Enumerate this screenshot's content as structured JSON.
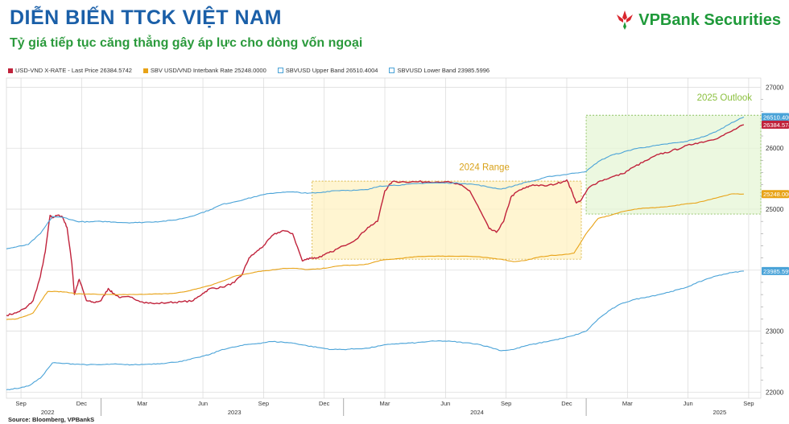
{
  "header": {
    "title": "DIỄN BIẾN TTCK VIỆT NAM",
    "subtitle": "Tỷ giá tiếp tục căng thẳng gây áp lực cho dòng vốn ngoại",
    "logo_text": "VPBank Securities"
  },
  "source": "Source: Bloomberg, VPBankS",
  "colors": {
    "usd_vnd": "#c0223b",
    "interbank": "#e8a317",
    "upper": "#4aa3d8",
    "lower": "#4aa3d8",
    "brand_blue": "#1a5fa8",
    "brand_green": "#2b9a3c"
  },
  "chart_data": {
    "type": "line",
    "legend": [
      {
        "label": "USD-VND X-RATE - Last Price 26384.5742",
        "color": "#c0223b"
      },
      {
        "label": "SBV USD/VND Interbank Rate 25248.0000",
        "color": "#e8a317"
      },
      {
        "label": "SBVUSD Upper Band 26510.4004",
        "color": "#4aa3d8"
      },
      {
        "label": "SBVUSD Lower Band 23985.5996",
        "color": "#4aa3d8"
      }
    ],
    "ylim": [
      21900,
      27150
    ],
    "y_ticks": [
      "22000",
      "23000",
      "24000",
      "25000",
      "26000",
      "27000"
    ],
    "x_range": [
      2022.61,
      2025.72
    ],
    "x_tick_labels": [
      {
        "x": 2022.67,
        "label": "Sep"
      },
      {
        "x": 2022.92,
        "label": "Dec"
      },
      {
        "x": 2023.17,
        "label": "Mar"
      },
      {
        "x": 2023.42,
        "label": "Jun"
      },
      {
        "x": 2023.67,
        "label": "Sep"
      },
      {
        "x": 2023.92,
        "label": "Dec"
      },
      {
        "x": 2024.17,
        "label": "Mar"
      },
      {
        "x": 2024.42,
        "label": "Jun"
      },
      {
        "x": 2024.67,
        "label": "Sep"
      },
      {
        "x": 2024.92,
        "label": "Dec"
      },
      {
        "x": 2025.17,
        "label": "Mar"
      },
      {
        "x": 2025.42,
        "label": "Jun"
      },
      {
        "x": 2025.67,
        "label": "Sep"
      }
    ],
    "year_labels": [
      {
        "x": 2022.78,
        "label": "2022"
      },
      {
        "x": 2023.55,
        "label": "2023"
      },
      {
        "x": 2024.55,
        "label": "2024"
      },
      {
        "x": 2025.55,
        "label": "2025"
      }
    ],
    "year_dividers": [
      2023.0,
      2024.0,
      2025.0
    ],
    "last_value_labels": [
      {
        "label": "26510.4004",
        "value": 26510,
        "color": "#4aa3d8"
      },
      {
        "label": "26384.5742",
        "value": 26385,
        "color": "#c0223b"
      },
      {
        "label": "25248.0000",
        "value": 25248,
        "color": "#e8a317"
      },
      {
        "label": "23985.5996",
        "value": 23986,
        "color": "#4aa3d8"
      }
    ],
    "annotations": [
      {
        "label": "2024 Range",
        "x0": 2023.87,
        "x1": 2024.98,
        "y0": 24180,
        "y1": 25460,
        "fill": "#fff2c2",
        "stroke": "#d9b84a",
        "label_x": 2024.58,
        "label_y": 25640,
        "label_color": "#d9a21a"
      },
      {
        "label": "2025 Outlook",
        "x0": 2025.0,
        "x1": 2025.72,
        "y0": 24920,
        "y1": 26540,
        "fill": "#e6f5d6",
        "stroke": "#8cc060",
        "label_x": 2025.57,
        "label_y": 26780,
        "label_color": "#8cc040"
      }
    ],
    "series": [
      {
        "name": "USD-VND X-RATE",
        "color": "#c0223b",
        "x": [
          2022.61,
          2022.65,
          2022.69,
          2022.72,
          2022.75,
          2022.77,
          2022.79,
          2022.8,
          2022.82,
          2022.84,
          2022.86,
          2022.88,
          2022.89,
          2022.91,
          2022.94,
          2022.97,
          2023.0,
          2023.03,
          2023.05,
          2023.08,
          2023.12,
          2023.17,
          2023.22,
          2023.28,
          2023.33,
          2023.38,
          2023.42,
          2023.45,
          2023.5,
          2023.55,
          2023.58,
          2023.61,
          2023.64,
          2023.67,
          2023.71,
          2023.75,
          2023.79,
          2023.83,
          2023.86,
          2023.89,
          2023.92,
          2023.95,
          2024.0,
          2024.05,
          2024.1,
          2024.14,
          2024.17,
          2024.2,
          2024.25,
          2024.3,
          2024.35,
          2024.42,
          2024.48,
          2024.52,
          2024.56,
          2024.6,
          2024.63,
          2024.66,
          2024.69,
          2024.72,
          2024.75,
          2024.78,
          2024.83,
          2024.88,
          2024.92,
          2024.94,
          2024.96,
          2024.98,
          2025.01,
          2025.05,
          2025.1,
          2025.15,
          2025.2,
          2025.25,
          2025.3,
          2025.35,
          2025.4,
          2025.45,
          2025.5,
          2025.55,
          2025.6,
          2025.65
        ],
        "y": [
          23260,
          23300,
          23380,
          23500,
          23900,
          24300,
          24900,
          24860,
          24900,
          24880,
          24700,
          24100,
          23600,
          23850,
          23500,
          23470,
          23500,
          23700,
          23620,
          23550,
          23560,
          23480,
          23450,
          23470,
          23480,
          23500,
          23620,
          23700,
          23720,
          23800,
          23920,
          24200,
          24300,
          24400,
          24580,
          24650,
          24600,
          24150,
          24200,
          24200,
          24250,
          24300,
          24400,
          24500,
          24700,
          24800,
          25300,
          25450,
          25450,
          25450,
          25450,
          25450,
          25400,
          25300,
          25000,
          24680,
          24620,
          24800,
          25200,
          25300,
          25350,
          25400,
          25380,
          25420,
          25480,
          25300,
          25100,
          25150,
          25350,
          25450,
          25520,
          25580,
          25700,
          25800,
          25900,
          25950,
          26020,
          26080,
          26120,
          26180,
          26280,
          26385
        ]
      },
      {
        "name": "SBV USD/VND Interbank Rate",
        "color": "#e8a317",
        "x": [
          2022.61,
          2022.65,
          2022.69,
          2022.72,
          2022.75,
          2022.78,
          2022.82,
          2022.86,
          2022.9,
          2022.95,
          2023.0,
          2023.05,
          2023.1,
          2023.15,
          2023.2,
          2023.25,
          2023.3,
          2023.35,
          2023.4,
          2023.45,
          2023.5,
          2023.55,
          2023.6,
          2023.65,
          2023.7,
          2023.75,
          2023.8,
          2023.85,
          2023.9,
          2023.95,
          2024.0,
          2024.05,
          2024.1,
          2024.15,
          2024.2,
          2024.25,
          2024.3,
          2024.35,
          2024.4,
          2024.45,
          2024.5,
          2024.55,
          2024.6,
          2024.65,
          2024.7,
          2024.75,
          2024.8,
          2024.85,
          2024.9,
          2024.95,
          2025.0,
          2025.05,
          2025.1,
          2025.15,
          2025.2,
          2025.25,
          2025.3,
          2025.35,
          2025.4,
          2025.45,
          2025.5,
          2025.55,
          2025.6,
          2025.65
        ],
        "y": [
          23190,
          23200,
          23250,
          23300,
          23480,
          23650,
          23650,
          23640,
          23610,
          23610,
          23600,
          23600,
          23600,
          23600,
          23610,
          23610,
          23620,
          23650,
          23700,
          23750,
          23820,
          23900,
          23940,
          23980,
          24000,
          24030,
          24030,
          24010,
          24020,
          24050,
          24080,
          24080,
          24100,
          24160,
          24180,
          24200,
          24220,
          24230,
          24230,
          24230,
          24230,
          24220,
          24200,
          24180,
          24140,
          24160,
          24210,
          24240,
          24250,
          24280,
          24600,
          24850,
          24900,
          24960,
          25000,
          25020,
          25030,
          25050,
          25080,
          25100,
          25150,
          25200,
          25250,
          25248
        ]
      },
      {
        "name": "SBVUSD Upper Band",
        "color": "#4aa3d8",
        "x": [
          2022.61,
          2022.65,
          2022.7,
          2022.75,
          2022.8,
          2022.85,
          2022.9,
          2022.95,
          2023.0,
          2023.05,
          2023.1,
          2023.15,
          2023.2,
          2023.25,
          2023.3,
          2023.35,
          2023.4,
          2023.45,
          2023.5,
          2023.55,
          2023.6,
          2023.65,
          2023.7,
          2023.75,
          2023.8,
          2023.85,
          2023.9,
          2023.95,
          2024.0,
          2024.05,
          2024.1,
          2024.15,
          2024.2,
          2024.25,
          2024.3,
          2024.35,
          2024.4,
          2024.45,
          2024.5,
          2024.55,
          2024.6,
          2024.65,
          2024.7,
          2024.75,
          2024.8,
          2024.85,
          2024.9,
          2024.95,
          2025.0,
          2025.05,
          2025.1,
          2025.15,
          2025.2,
          2025.25,
          2025.3,
          2025.35,
          2025.4,
          2025.45,
          2025.5,
          2025.55,
          2025.6,
          2025.65
        ],
        "y": [
          24350,
          24380,
          24420,
          24600,
          24880,
          24860,
          24800,
          24790,
          24800,
          24790,
          24780,
          24780,
          24790,
          24800,
          24820,
          24860,
          24920,
          24990,
          25080,
          25120,
          25170,
          25220,
          25260,
          25280,
          25280,
          25260,
          25270,
          25300,
          25310,
          25310,
          25320,
          25380,
          25390,
          25400,
          25420,
          25430,
          25430,
          25430,
          25420,
          25400,
          25360,
          25330,
          25380,
          25440,
          25480,
          25540,
          25560,
          25590,
          25620,
          25780,
          25880,
          25930,
          25990,
          26020,
          26050,
          26080,
          26100,
          26150,
          26210,
          26300,
          26420,
          26510
        ]
      },
      {
        "name": "SBVUSD Lower Band",
        "color": "#4aa3d8",
        "x": [
          2022.61,
          2022.65,
          2022.7,
          2022.75,
          2022.8,
          2022.85,
          2022.9,
          2022.95,
          2023.0,
          2023.05,
          2023.1,
          2023.15,
          2023.2,
          2023.25,
          2023.3,
          2023.35,
          2023.4,
          2023.45,
          2023.5,
          2023.55,
          2023.6,
          2023.65,
          2023.7,
          2023.75,
          2023.8,
          2023.85,
          2023.9,
          2023.95,
          2024.0,
          2024.05,
          2024.1,
          2024.15,
          2024.2,
          2024.25,
          2024.3,
          2024.35,
          2024.4,
          2024.45,
          2024.5,
          2024.55,
          2024.6,
          2024.65,
          2024.7,
          2024.75,
          2024.8,
          2024.85,
          2024.9,
          2024.95,
          2025.0,
          2025.05,
          2025.1,
          2025.15,
          2025.2,
          2025.25,
          2025.3,
          2025.35,
          2025.4,
          2025.45,
          2025.5,
          2025.55,
          2025.6,
          2025.65
        ],
        "y": [
          22040,
          22060,
          22100,
          22230,
          22480,
          22470,
          22460,
          22450,
          22450,
          22460,
          22450,
          22450,
          22460,
          22470,
          22490,
          22520,
          22570,
          22620,
          22700,
          22740,
          22780,
          22800,
          22830,
          22820,
          22800,
          22760,
          22730,
          22700,
          22700,
          22710,
          22720,
          22760,
          22790,
          22800,
          22810,
          22830,
          22840,
          22830,
          22810,
          22790,
          22740,
          22680,
          22700,
          22760,
          22800,
          22840,
          22880,
          22930,
          23000,
          23200,
          23350,
          23460,
          23520,
          23560,
          23600,
          23650,
          23700,
          23780,
          23860,
          23920,
          23960,
          23986
        ]
      }
    ]
  }
}
